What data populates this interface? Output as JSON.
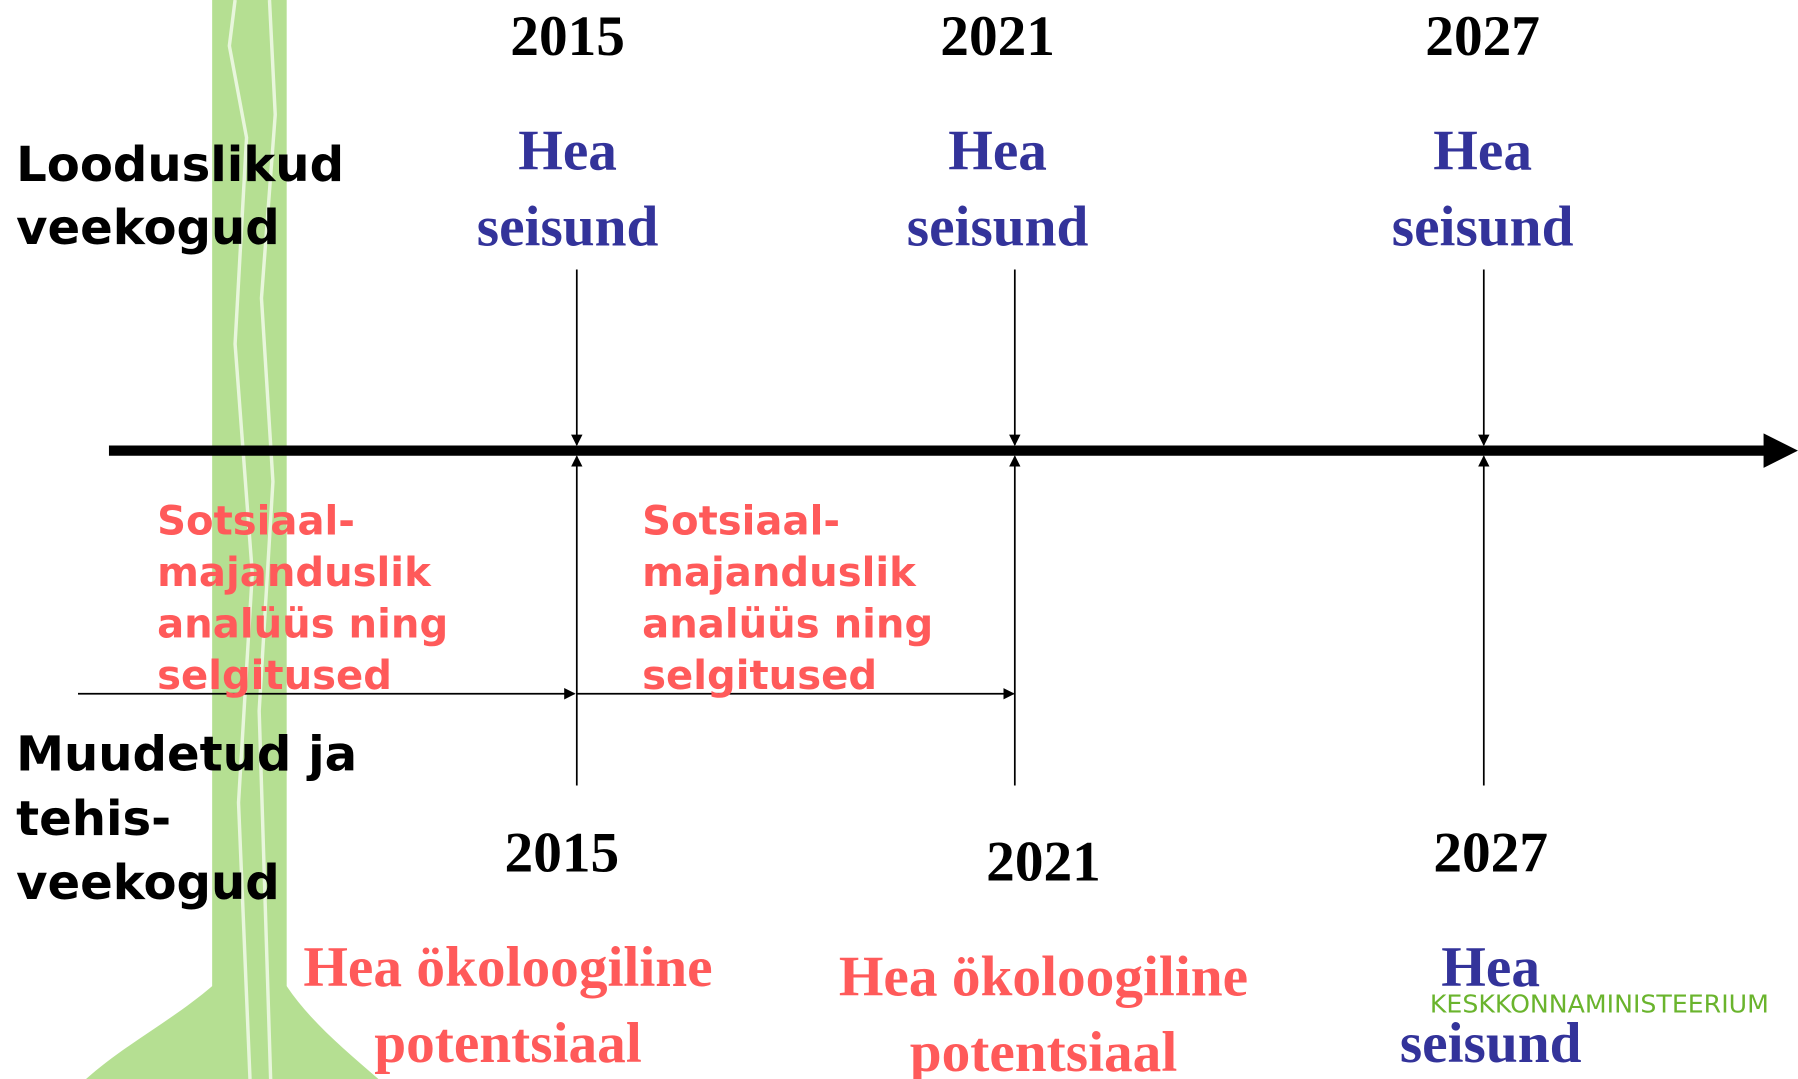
{
  "natural": {
    "label": [
      "Looduslikud",
      "veekogud"
    ],
    "milestones": [
      {
        "year": "2015",
        "status": [
          "Hea",
          "seisund"
        ]
      },
      {
        "year": "2021",
        "status": [
          "Hea",
          "seisund"
        ]
      },
      {
        "year": "2027",
        "status": [
          "Hea",
          "seisund"
        ]
      }
    ]
  },
  "notes": [
    [
      "Sotsiaal-",
      "majanduslik",
      "analüüs ning",
      "selgitused"
    ],
    [
      "Sotsiaal-",
      "majanduslik",
      "analüüs ning",
      "selgitused"
    ]
  ],
  "modified": {
    "label": [
      "Muudetud ja",
      "tehis-",
      "veekogud"
    ],
    "milestones": [
      {
        "year": "2015",
        "status": [
          "Hea ökoloogiline",
          "potentsiaal"
        ]
      },
      {
        "year": "2021",
        "status": [
          "Hea ökoloogiline",
          "potentsiaal"
        ]
      },
      {
        "year": "2027",
        "status": [
          "Hea",
          "seisund"
        ]
      }
    ]
  },
  "logo": "KESKKONNAMINISTEERIUM"
}
